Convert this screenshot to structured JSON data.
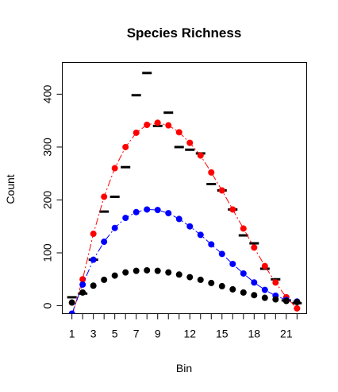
{
  "chart_data": {
    "type": "scatter",
    "title": "Species Richness",
    "xlabel": "Bin",
    "ylabel": "Count",
    "xlim": [
      0.1,
      22.9
    ],
    "ylim": [
      -15,
      460
    ],
    "x_ticks": [
      1,
      3,
      5,
      7,
      9,
      12,
      15,
      18,
      21
    ],
    "y_ticks": [
      0,
      100,
      200,
      300,
      400
    ],
    "grid": false,
    "x": [
      1,
      2,
      3,
      4,
      5,
      6,
      7,
      8,
      9,
      10,
      11,
      12,
      13,
      14,
      15,
      16,
      17,
      18,
      19,
      20,
      21,
      22
    ],
    "series": [
      {
        "style": "dash-markers",
        "color": "#000000",
        "values": [
          16,
          23,
          87,
          178,
          206,
          262,
          398,
          440,
          340,
          365,
          300,
          295,
          288,
          230,
          218,
          182,
          133,
          118,
          70,
          50,
          10,
          5
        ]
      },
      {
        "style": "points-with-line",
        "color": "#ff0000",
        "values": [
          -20,
          50,
          136,
          206,
          260,
          300,
          327,
          342,
          346,
          341,
          328,
          308,
          284,
          252,
          218,
          182,
          146,
          110,
          75,
          44,
          16,
          -5
        ]
      },
      {
        "style": "points-with-line",
        "color": "#0000ff",
        "values": [
          -15,
          40,
          87,
          121,
          147,
          166,
          177,
          182,
          181,
          175,
          164,
          150,
          134,
          116,
          98,
          79,
          61,
          44,
          30,
          19,
          11,
          8
        ]
      },
      {
        "style": "points",
        "color": "#000000",
        "values": [
          6,
          25,
          38,
          49,
          57,
          63,
          66,
          67,
          66,
          63,
          59,
          54,
          49,
          43,
          37,
          31,
          25,
          20,
          15,
          12,
          9,
          7
        ]
      }
    ]
  }
}
